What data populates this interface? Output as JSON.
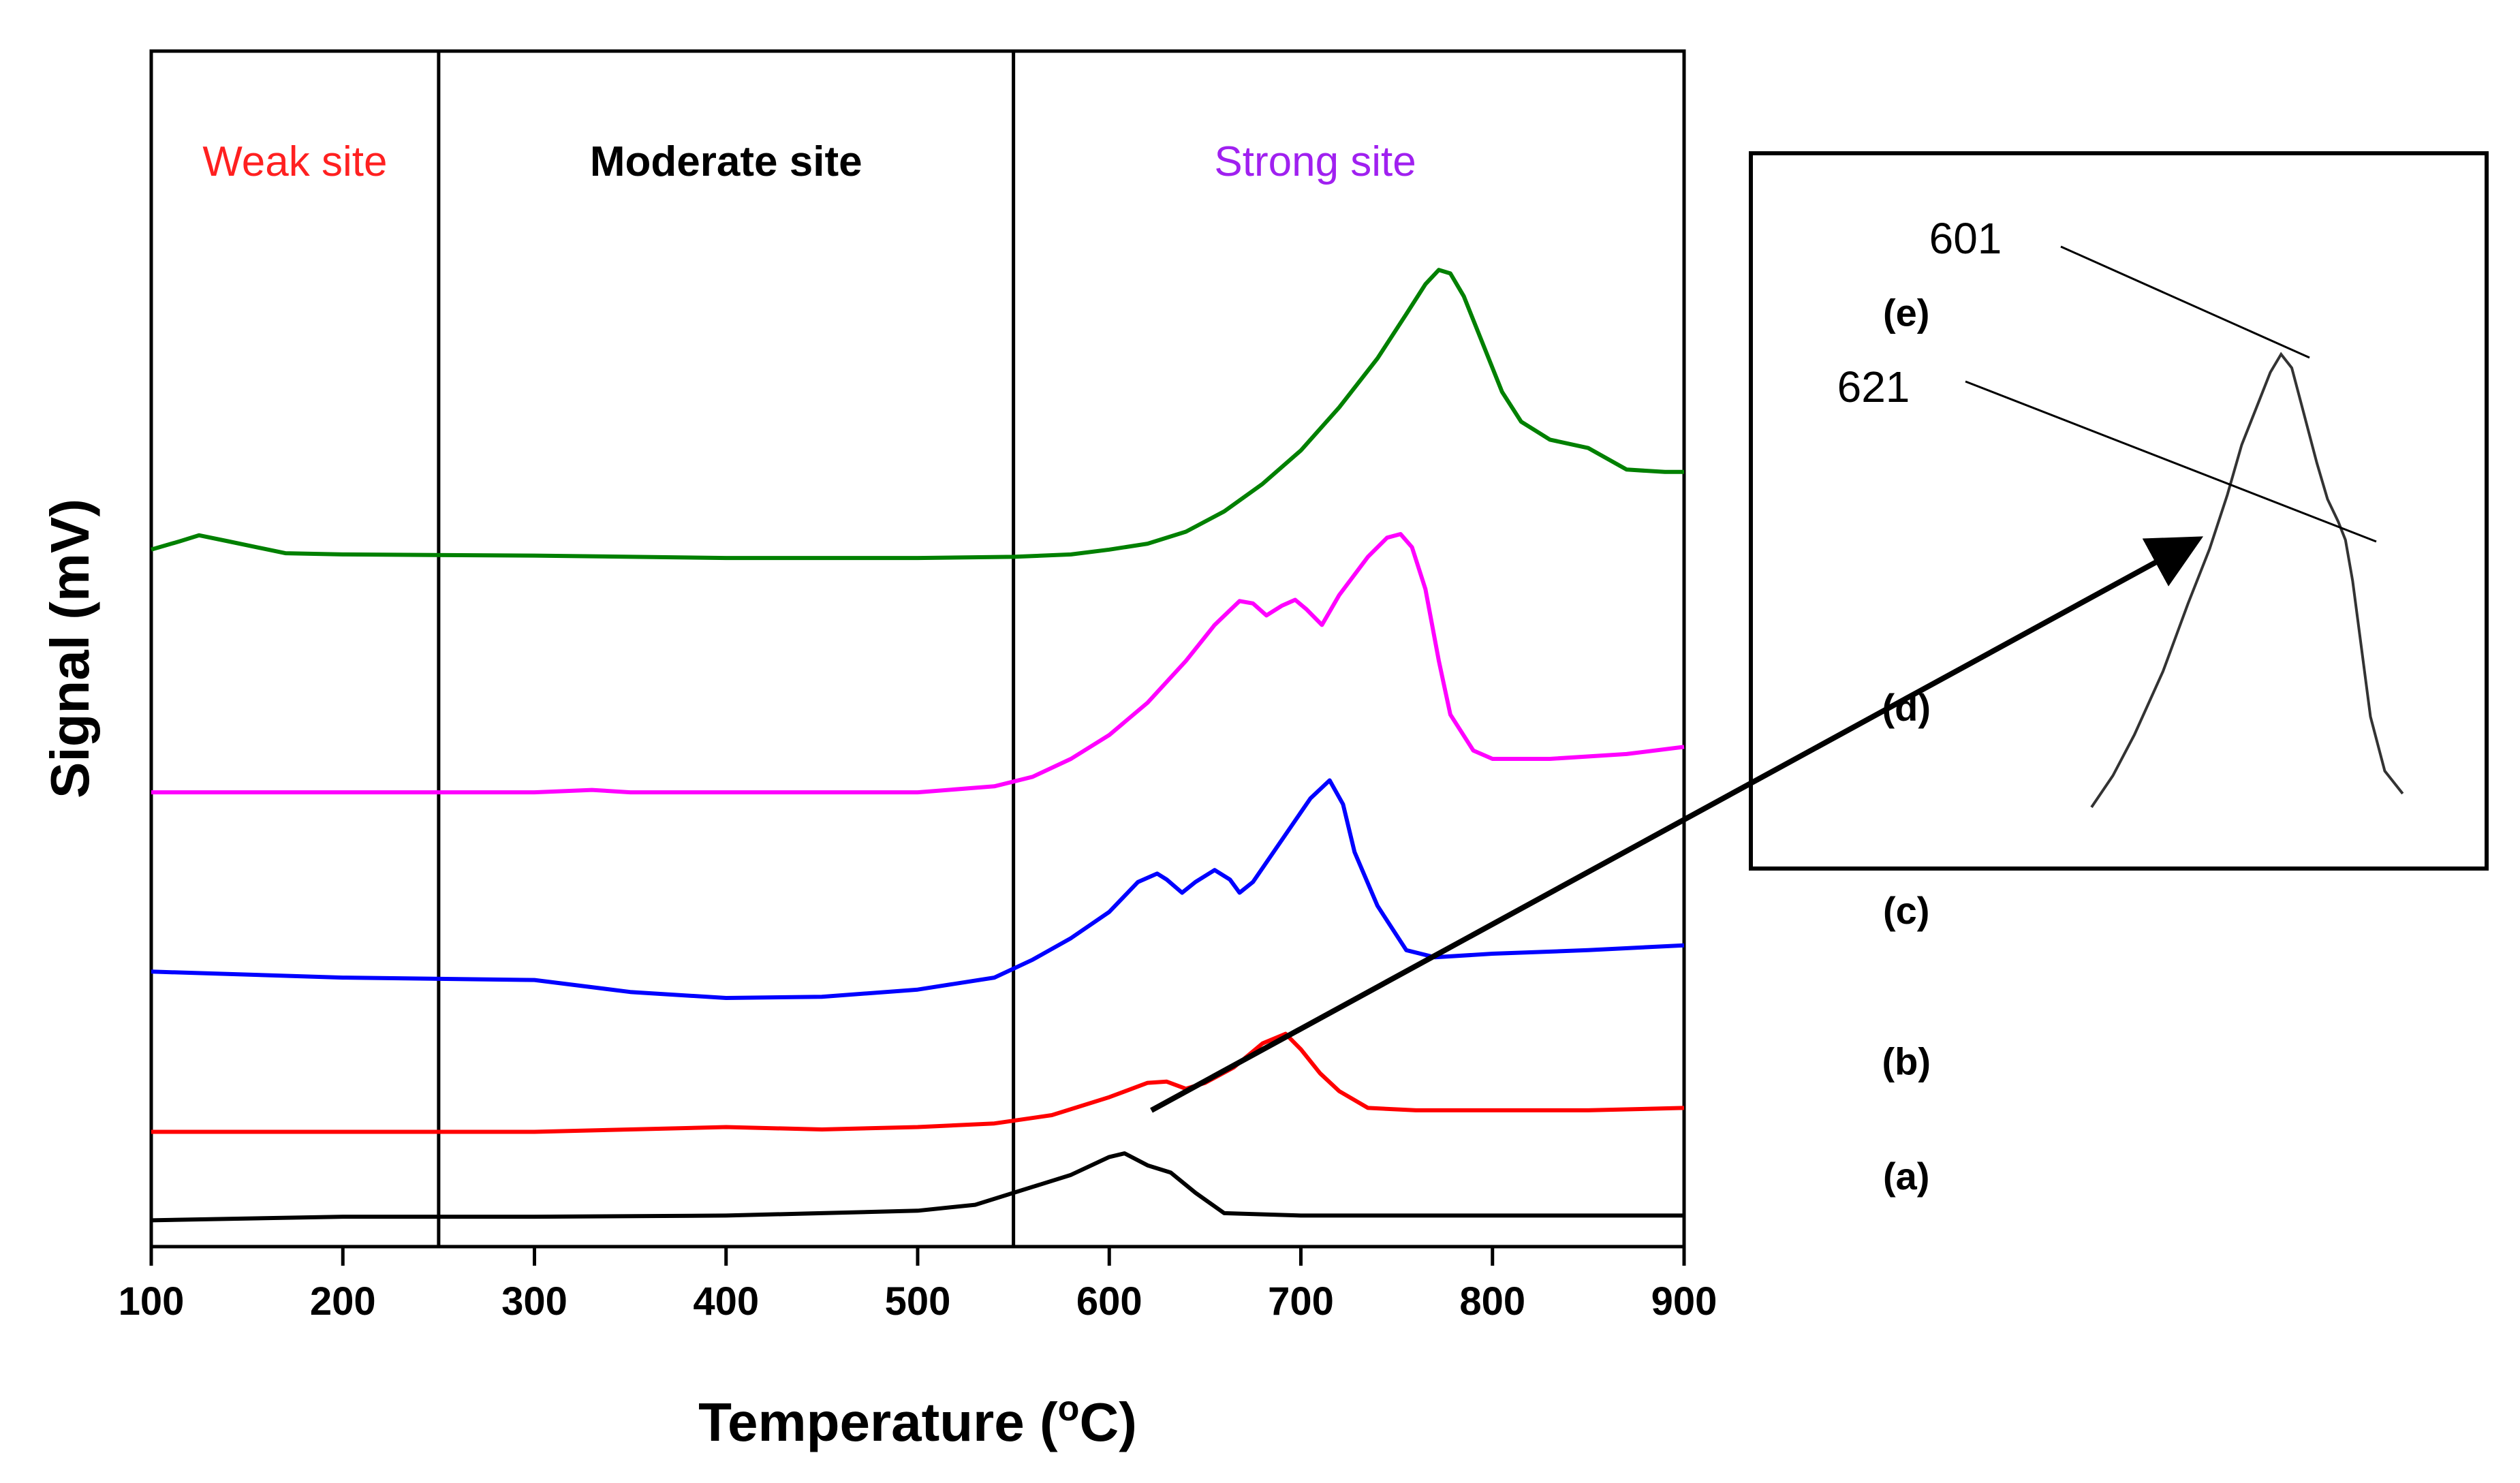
{
  "chart_data": {
    "type": "line",
    "xlabel": "Temperature (°C)",
    "xlabel_parts": {
      "prefix": "Temperature (",
      "sup": "o",
      "suffix": "C)"
    },
    "ylabel": "Signal (mV)",
    "xlim": [
      100,
      900
    ],
    "ylim": [
      0,
      100
    ],
    "xticks": [
      100,
      200,
      300,
      400,
      500,
      600,
      700,
      800,
      900
    ],
    "grid": false,
    "regions": [
      {
        "label": "Weak site",
        "x_range": [
          100,
          250
        ],
        "color": "#ff2020"
      },
      {
        "label": "Moderate site",
        "x_range": [
          250,
          550
        ],
        "color": "#000000"
      },
      {
        "label": "Strong site",
        "x_range": [
          550,
          900
        ],
        "color": "#a020f0"
      }
    ],
    "region_boundaries": [
      250,
      550
    ],
    "series": [
      {
        "name": "(a)",
        "color": "#000000",
        "points": [
          [
            100,
            2.2
          ],
          [
            200,
            2.5
          ],
          [
            300,
            2.5
          ],
          [
            400,
            2.6
          ],
          [
            500,
            3.0
          ],
          [
            530,
            3.5
          ],
          [
            560,
            5.0
          ],
          [
            580,
            6.0
          ],
          [
            600,
            7.5
          ],
          [
            608,
            7.8
          ],
          [
            620,
            6.8
          ],
          [
            632,
            6.2
          ],
          [
            645,
            4.5
          ],
          [
            660,
            2.8
          ],
          [
            700,
            2.6
          ],
          [
            800,
            2.6
          ],
          [
            900,
            2.6
          ]
        ]
      },
      {
        "name": "(b)",
        "color": "#ff0000",
        "points": [
          [
            100,
            9.6
          ],
          [
            200,
            9.6
          ],
          [
            300,
            9.6
          ],
          [
            350,
            9.8
          ],
          [
            400,
            10.0
          ],
          [
            450,
            9.8
          ],
          [
            500,
            10.0
          ],
          [
            540,
            10.3
          ],
          [
            570,
            11.0
          ],
          [
            600,
            12.5
          ],
          [
            620,
            13.7
          ],
          [
            630,
            13.8
          ],
          [
            640,
            13.2
          ],
          [
            650,
            13.7
          ],
          [
            665,
            15.0
          ],
          [
            680,
            17.0
          ],
          [
            692,
            17.8
          ],
          [
            700,
            16.5
          ],
          [
            710,
            14.5
          ],
          [
            720,
            13.0
          ],
          [
            735,
            11.6
          ],
          [
            760,
            11.4
          ],
          [
            800,
            11.4
          ],
          [
            850,
            11.4
          ],
          [
            900,
            11.6
          ]
        ]
      },
      {
        "name": "(c)",
        "color": "#0000ff",
        "points": [
          [
            100,
            23.0
          ],
          [
            200,
            22.5
          ],
          [
            300,
            22.3
          ],
          [
            350,
            21.3
          ],
          [
            400,
            20.8
          ],
          [
            450,
            20.9
          ],
          [
            500,
            21.5
          ],
          [
            540,
            22.5
          ],
          [
            560,
            24.0
          ],
          [
            580,
            25.8
          ],
          [
            600,
            28.0
          ],
          [
            615,
            30.5
          ],
          [
            625,
            31.2
          ],
          [
            630,
            30.7
          ],
          [
            638,
            29.6
          ],
          [
            645,
            30.5
          ],
          [
            655,
            31.5
          ],
          [
            663,
            30.7
          ],
          [
            668,
            29.6
          ],
          [
            675,
            30.5
          ],
          [
            690,
            34.0
          ],
          [
            705,
            37.5
          ],
          [
            715,
            39.0
          ],
          [
            722,
            37.0
          ],
          [
            728,
            33.0
          ],
          [
            740,
            28.5
          ],
          [
            755,
            24.8
          ],
          [
            770,
            24.2
          ],
          [
            800,
            24.5
          ],
          [
            850,
            24.8
          ],
          [
            900,
            25.2
          ]
        ]
      },
      {
        "name": "(d)",
        "color": "#ff00ff",
        "points": [
          [
            100,
            38.0
          ],
          [
            200,
            38.0
          ],
          [
            300,
            38.0
          ],
          [
            330,
            38.2
          ],
          [
            350,
            38.0
          ],
          [
            400,
            38.0
          ],
          [
            450,
            38.0
          ],
          [
            500,
            38.0
          ],
          [
            540,
            38.5
          ],
          [
            560,
            39.3
          ],
          [
            580,
            40.8
          ],
          [
            600,
            42.8
          ],
          [
            620,
            45.5
          ],
          [
            640,
            49.0
          ],
          [
            655,
            52.0
          ],
          [
            668,
            54.0
          ],
          [
            675,
            53.8
          ],
          [
            682,
            52.8
          ],
          [
            690,
            53.6
          ],
          [
            697,
            54.1
          ],
          [
            703,
            53.3
          ],
          [
            711,
            52.0
          ],
          [
            720,
            54.5
          ],
          [
            735,
            57.7
          ],
          [
            745,
            59.3
          ],
          [
            752,
            59.6
          ],
          [
            758,
            58.5
          ],
          [
            765,
            55.0
          ],
          [
            772,
            49.0
          ],
          [
            778,
            44.5
          ],
          [
            790,
            41.5
          ],
          [
            800,
            40.8
          ],
          [
            830,
            40.8
          ],
          [
            870,
            41.2
          ],
          [
            900,
            41.8
          ]
        ]
      },
      {
        "name": "(e)",
        "color": "#008000",
        "points": [
          [
            100,
            58.3
          ],
          [
            115,
            59.0
          ],
          [
            125,
            59.5
          ],
          [
            140,
            59.0
          ],
          [
            170,
            58.0
          ],
          [
            200,
            57.9
          ],
          [
            300,
            57.8
          ],
          [
            400,
            57.6
          ],
          [
            500,
            57.6
          ],
          [
            550,
            57.7
          ],
          [
            580,
            57.9
          ],
          [
            600,
            58.3
          ],
          [
            620,
            58.8
          ],
          [
            640,
            59.8
          ],
          [
            660,
            61.5
          ],
          [
            680,
            63.8
          ],
          [
            700,
            66.6
          ],
          [
            720,
            70.2
          ],
          [
            740,
            74.3
          ],
          [
            755,
            78.0
          ],
          [
            765,
            80.5
          ],
          [
            772,
            81.7
          ],
          [
            778,
            81.4
          ],
          [
            785,
            79.5
          ],
          [
            795,
            75.5
          ],
          [
            805,
            71.5
          ],
          [
            815,
            69.0
          ],
          [
            830,
            67.5
          ],
          [
            850,
            66.8
          ],
          [
            870,
            65.0
          ],
          [
            890,
            64.8
          ],
          [
            900,
            64.8
          ]
        ]
      }
    ],
    "series_label_positions": [
      {
        "name": "(a)",
        "x": 1016,
        "y": 4.8
      },
      {
        "name": "(b)",
        "x": 1016,
        "y": 14.4
      },
      {
        "name": "(c)",
        "x": 1016,
        "y": 27.0
      },
      {
        "name": "(d)",
        "x": 1016,
        "y": 44.0
      },
      {
        "name": "(e)",
        "x": 1016,
        "y": 77.0
      }
    ],
    "inset": {
      "description": "magnified peak of (b)",
      "annotations": [
        {
          "label": "601",
          "target": "peak maximum"
        },
        {
          "label": "621",
          "target": "shoulder"
        }
      ],
      "profile_points": [
        [
          0,
          0
        ],
        [
          0.06,
          0.07
        ],
        [
          0.12,
          0.16
        ],
        [
          0.2,
          0.3
        ],
        [
          0.27,
          0.45
        ],
        [
          0.33,
          0.57
        ],
        [
          0.38,
          0.69
        ],
        [
          0.42,
          0.8
        ],
        [
          0.47,
          0.9
        ],
        [
          0.5,
          0.96
        ],
        [
          0.53,
          1.0
        ],
        [
          0.56,
          0.97
        ],
        [
          0.59,
          0.88
        ],
        [
          0.63,
          0.76
        ],
        [
          0.66,
          0.68
        ],
        [
          0.69,
          0.63
        ],
        [
          0.71,
          0.59
        ],
        [
          0.73,
          0.5
        ],
        [
          0.75,
          0.38
        ],
        [
          0.78,
          0.2
        ],
        [
          0.82,
          0.08
        ],
        [
          0.87,
          0.03
        ]
      ]
    }
  }
}
